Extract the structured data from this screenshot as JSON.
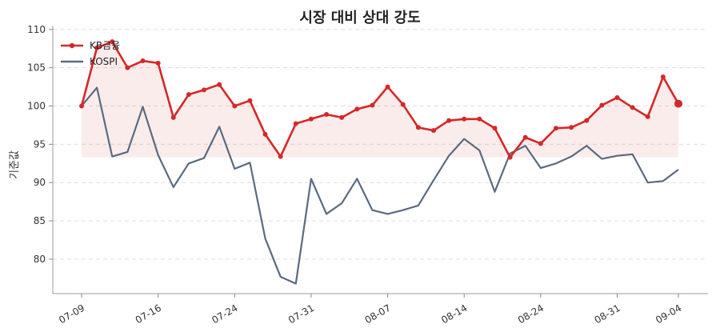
{
  "chart_data": {
    "type": "line",
    "title": "시장 대비 상대 강도",
    "xlabel": "",
    "ylabel": "기준값",
    "ylim": [
      75.5,
      110.5
    ],
    "y_ticks": [
      80,
      85,
      90,
      95,
      100,
      105,
      110
    ],
    "x_tick_labels": [
      "07-09",
      "07-16",
      "07-24",
      "07-31",
      "08-07",
      "08-14",
      "08-24",
      "08-31",
      "09-04"
    ],
    "x_tick_index": [
      0,
      5,
      10,
      15,
      20,
      25,
      30,
      35,
      39
    ],
    "grid": "horizontal dashed",
    "legend_position": "top-left",
    "fill_baseline": 93.3,
    "series": [
      {
        "name": "KB금융",
        "color": "#d62728",
        "marker": "circle",
        "values": [
          100.0,
          107.6,
          108.4,
          105.0,
          105.9,
          105.6,
          98.5,
          101.5,
          102.1,
          102.8,
          100.0,
          100.7,
          96.3,
          93.4,
          97.7,
          98.3,
          98.9,
          98.5,
          99.6,
          100.1,
          102.5,
          100.2,
          97.2,
          96.8,
          98.1,
          98.3,
          98.3,
          97.1,
          93.3,
          95.9,
          95.1,
          97.1,
          97.2,
          98.1,
          100.1,
          101.1,
          99.8,
          98.6,
          103.8,
          100.3
        ]
      },
      {
        "name": "KOSPI",
        "color": "#5a6b80",
        "marker": "none",
        "values": [
          100.0,
          102.4,
          93.4,
          94.0,
          99.9,
          93.6,
          89.4,
          92.5,
          93.2,
          97.3,
          91.8,
          92.6,
          82.7,
          77.7,
          76.8,
          90.5,
          85.9,
          87.3,
          90.5,
          86.4,
          85.9,
          86.4,
          87.0,
          90.3,
          93.5,
          95.7,
          94.2,
          88.8,
          93.8,
          94.8,
          91.9,
          92.5,
          93.4,
          94.8,
          93.1,
          93.5,
          93.7,
          90.0,
          90.2,
          91.7
        ]
      }
    ]
  }
}
